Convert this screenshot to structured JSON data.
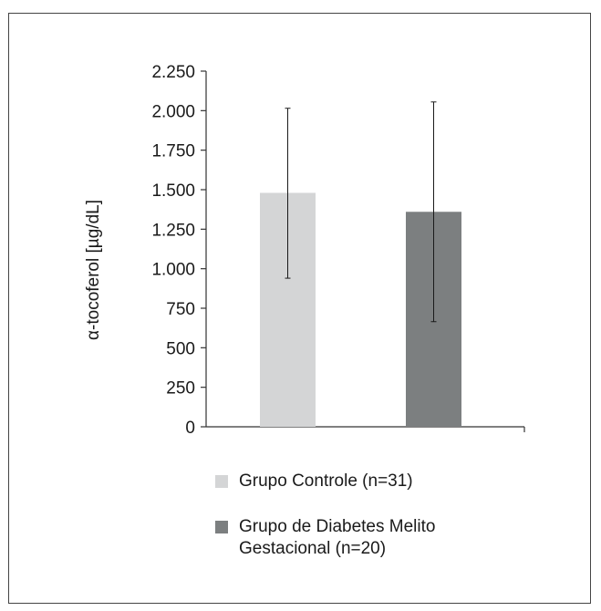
{
  "chart_data": {
    "type": "bar",
    "title": "",
    "xlabel": "",
    "ylabel": "α-tocoferol [µg/dL]",
    "ylim": [
      0,
      2250
    ],
    "yticks": [
      0,
      250,
      500,
      750,
      1000,
      1250,
      1500,
      1750,
      2000,
      2250
    ],
    "ytick_labels": [
      "0",
      "250",
      "500",
      "750",
      "1.000",
      "1.250",
      "1.500",
      "1.750",
      "2.000",
      "2.250"
    ],
    "grid": false,
    "legend_position": "bottom",
    "series": [
      {
        "name": "Grupo Controle (n=31)",
        "value": 1480,
        "error_low": 940,
        "error_high": 2015,
        "color": "#d4d5d6"
      },
      {
        "name": "Grupo de Diabetes Melito Gestacional (n=20)",
        "value": 1360,
        "error_low": 665,
        "error_high": 2055,
        "color": "#7c7f80"
      }
    ]
  }
}
